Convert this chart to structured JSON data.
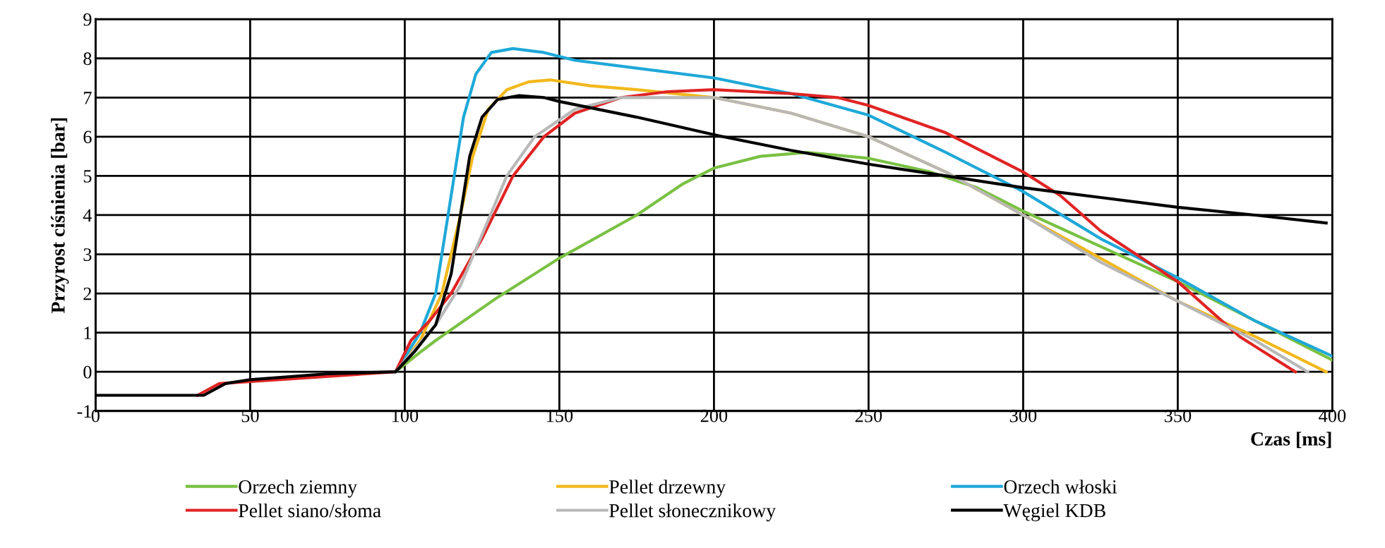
{
  "chart_data": {
    "type": "line",
    "xlabel": "Czas [ms]",
    "ylabel": "Przyrost ciśnienia [bar]",
    "xlim": [
      0,
      400
    ],
    "ylim": [
      -1,
      9
    ],
    "xticks": [
      0,
      50,
      100,
      150,
      200,
      250,
      300,
      350,
      400
    ],
    "yticks": [
      -1,
      0,
      1,
      2,
      3,
      4,
      5,
      6,
      7,
      8,
      9
    ],
    "grid": true,
    "legend": "bottom",
    "marker": "none",
    "line_style": "solid",
    "series": [
      {
        "name": "Orzech ziemny",
        "color": "#7ac143",
        "x": [
          97,
          105,
          110,
          130,
          150,
          175,
          190,
          200,
          215,
          230,
          250,
          270,
          285,
          300,
          325,
          350,
          375,
          400
        ],
        "values": [
          0,
          0.5,
          0.8,
          1.9,
          2.9,
          4.0,
          4.8,
          5.2,
          5.5,
          5.6,
          5.45,
          5.1,
          4.7,
          4.1,
          3.2,
          2.3,
          1.3,
          0.3
        ]
      },
      {
        "name": "Pellet drzewny",
        "color": "#f2b81c",
        "x": [
          97,
          105,
          112,
          118,
          122,
          127,
          133,
          140,
          147,
          160,
          175,
          200,
          225,
          250,
          275,
          300,
          325,
          350,
          375,
          398
        ],
        "values": [
          0,
          0.8,
          2,
          4,
          5.5,
          6.7,
          7.2,
          7.4,
          7.45,
          7.3,
          7.2,
          7.0,
          6.6,
          6.0,
          5.1,
          4.0,
          2.9,
          1.8,
          0.9,
          0.0
        ]
      },
      {
        "name": "Orzech włoski",
        "color": "#1ea8d8",
        "x": [
          97,
          105,
          110,
          113,
          116,
          119,
          123,
          128,
          135,
          145,
          155,
          175,
          200,
          225,
          250,
          275,
          300,
          325,
          350,
          375,
          400
        ],
        "values": [
          0,
          1,
          2,
          3.5,
          5,
          6.5,
          7.6,
          8.15,
          8.25,
          8.15,
          7.95,
          7.75,
          7.5,
          7.1,
          6.55,
          5.6,
          4.6,
          3.4,
          2.4,
          1.3,
          0.4
        ]
      },
      {
        "name": "Pellet siano/słoma",
        "color": "#e02424",
        "x": [
          33,
          40,
          97,
          102,
          108,
          115,
          125,
          135,
          145,
          155,
          170,
          185,
          200,
          225,
          240,
          250,
          275,
          300,
          312,
          325,
          350,
          370,
          388
        ],
        "values": [
          -0.6,
          -0.3,
          0,
          0.8,
          1.3,
          2.0,
          3.4,
          5.0,
          6.0,
          6.6,
          7.0,
          7.15,
          7.2,
          7.1,
          7.0,
          6.8,
          6.1,
          5.1,
          4.5,
          3.6,
          2.3,
          0.9,
          0.0
        ]
      },
      {
        "name": "Pellet słonecznikowy",
        "color": "#b8b8b8",
        "x": [
          97,
          110,
          118,
          125,
          133,
          142,
          155,
          170,
          200,
          225,
          250,
          275,
          300,
          325,
          350,
          375,
          392
        ],
        "values": [
          0,
          1.2,
          2.2,
          3.5,
          5.0,
          6.0,
          6.7,
          7.0,
          7.0,
          6.6,
          6.0,
          5.1,
          4.0,
          2.8,
          1.8,
          0.8,
          0.0
        ]
      },
      {
        "name": "Węgiel KDB",
        "color": "#000000",
        "x": [
          0,
          35,
          42,
          50,
          75,
          97,
          103,
          110,
          115,
          118,
          121,
          125,
          130,
          137,
          145,
          150,
          175,
          200,
          225,
          250,
          275,
          300,
          325,
          350,
          375,
          398
        ],
        "values": [
          -0.6,
          -0.6,
          -0.3,
          -0.2,
          -0.05,
          0,
          0.5,
          1.2,
          2.5,
          4,
          5.5,
          6.5,
          6.95,
          7.05,
          7.0,
          6.9,
          6.5,
          6.05,
          5.65,
          5.3,
          5.0,
          4.7,
          4.45,
          4.2,
          4.0,
          3.8
        ]
      }
    ]
  }
}
